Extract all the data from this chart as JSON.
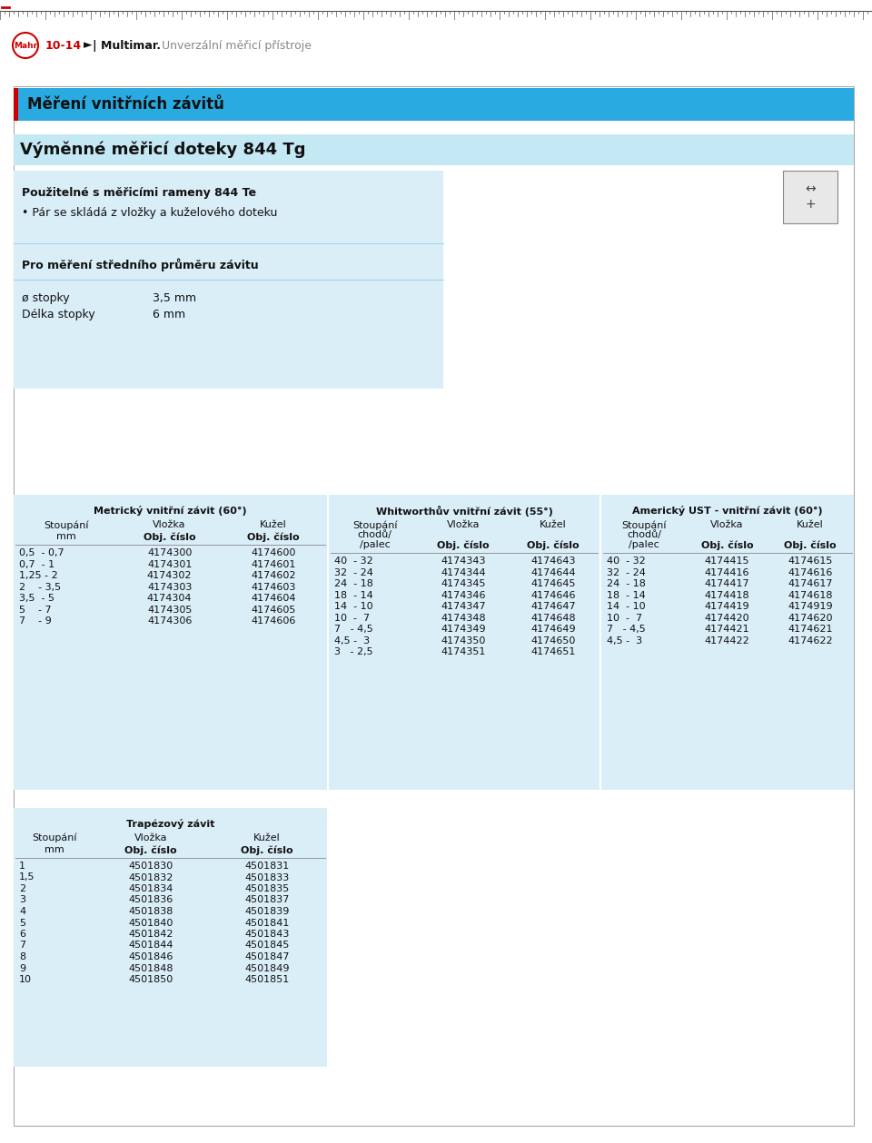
{
  "page_bg": "#ffffff",
  "section_title_bg": "#29abe2",
  "section_title_text": "Měření vnitřních závitů",
  "product_title_bg": "#c5e8f5",
  "product_title_text": "Výměnné měřicí doteky 844 Tg",
  "info_bg": "#daeef8",
  "table_bg": "#daeef8",
  "info_text1": "Použitelné s měřicími rameny 844 Te",
  "info_text2": "• Pár se skládá z vložky a kuželového doteku",
  "info_text3": "Pro měření středního průměru závitu",
  "spec_label1": "ø stopky",
  "spec_val1": "3,5 mm",
  "spec_label2": "Délka stopky",
  "spec_val2": "6 mm",
  "table1_title": "Metrický vnitřní závit (60°)",
  "table1_col1": "Stoupání",
  "table1_col2": "Vložka",
  "table1_col3": "Kužel",
  "table1_unit": "mm",
  "table1_col2_sub": "Obj. číslo",
  "table1_col3_sub": "Obj. číslo",
  "table1_rows": [
    [
      "0,5  - 0,7",
      "4174300",
      "4174600"
    ],
    [
      "0,7  - 1",
      "4174301",
      "4174601"
    ],
    [
      "1,25 - 2",
      "4174302",
      "4174602"
    ],
    [
      "2    - 3,5",
      "4174303",
      "4174603"
    ],
    [
      "3,5  - 5",
      "4174304",
      "4174604"
    ],
    [
      "5    - 7",
      "4174305",
      "4174605"
    ],
    [
      "7    - 9",
      "4174306",
      "4174606"
    ]
  ],
  "table2_title": "Whitworthův vnitřní závit (55°)",
  "table2_col1a": "Stoupání",
  "table2_col1b": "chodů/",
  "table2_col1c": "/palec",
  "table2_col2": "Vložka",
  "table2_col3": "Kužel",
  "table2_col2_sub": "Obj. číslo",
  "table2_col3_sub": "Obj. číslo",
  "table2_rows": [
    [
      "40  - 32",
      "4174343",
      "4174643"
    ],
    [
      "32  - 24",
      "4174344",
      "4174644"
    ],
    [
      "24  - 18",
      "4174345",
      "4174645"
    ],
    [
      "18  - 14",
      "4174346",
      "4174646"
    ],
    [
      "14  - 10",
      "4174347",
      "4174647"
    ],
    [
      "10  -  7",
      "4174348",
      "4174648"
    ],
    [
      "7   - 4,5",
      "4174349",
      "4174649"
    ],
    [
      "4,5 -  3",
      "4174350",
      "4174650"
    ],
    [
      "3   - 2,5",
      "4174351",
      "4174651"
    ]
  ],
  "table3_title": "Americký UST - vnitřní závit (60°)",
  "table3_col1a": "Stoupání",
  "table3_col1b": "chodů/",
  "table3_col1c": "/palec",
  "table3_col2": "Vložka",
  "table3_col3": "Kužel",
  "table3_col2_sub": "Obj. číslo",
  "table3_col3_sub": "Obj. číslo",
  "table3_rows": [
    [
      "40  - 32",
      "4174415",
      "4174615"
    ],
    [
      "32  - 24",
      "4174416",
      "4174616"
    ],
    [
      "24  - 18",
      "4174417",
      "4174617"
    ],
    [
      "18  - 14",
      "4174418",
      "4174618"
    ],
    [
      "14  - 10",
      "4174419",
      "4174919"
    ],
    [
      "10  -  7",
      "4174420",
      "4174620"
    ],
    [
      "7   - 4,5",
      "4174421",
      "4174621"
    ],
    [
      "4,5 -  3",
      "4174422",
      "4174622"
    ]
  ],
  "table4_title": "Trapézový závit",
  "table4_col1": "Stoupání",
  "table4_col2": "Vložka",
  "table4_col3": "Kužel",
  "table4_unit": "mm",
  "table4_col2_sub": "Obj. číslo",
  "table4_col3_sub": "Obj. číslo",
  "table4_rows": [
    [
      "1",
      "4501830",
      "4501831"
    ],
    [
      "1,5",
      "4501832",
      "4501833"
    ],
    [
      "2",
      "4501834",
      "4501835"
    ],
    [
      "3",
      "4501836",
      "4501837"
    ],
    [
      "4",
      "4501838",
      "4501839"
    ],
    [
      "5",
      "4501840",
      "4501841"
    ],
    [
      "6",
      "4501842",
      "4501843"
    ],
    [
      "7",
      "4501844",
      "4501845"
    ],
    [
      "8",
      "4501846",
      "4501847"
    ],
    [
      "9",
      "4501848",
      "4501849"
    ],
    [
      "10",
      "4501850",
      "4501851"
    ]
  ]
}
